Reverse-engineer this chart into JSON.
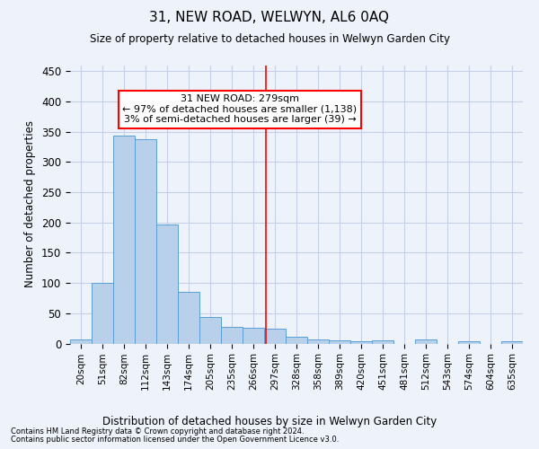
{
  "title": "31, NEW ROAD, WELWYN, AL6 0AQ",
  "subtitle": "Size of property relative to detached houses in Welwyn Garden City",
  "xlabel": "Distribution of detached houses by size in Welwyn Garden City",
  "ylabel": "Number of detached properties",
  "footnote1": "Contains HM Land Registry data © Crown copyright and database right 2024.",
  "footnote2": "Contains public sector information licensed under the Open Government Licence v3.0.",
  "bar_labels": [
    "20sqm",
    "51sqm",
    "82sqm",
    "112sqm",
    "143sqm",
    "174sqm",
    "205sqm",
    "235sqm",
    "266sqm",
    "297sqm",
    "328sqm",
    "358sqm",
    "389sqm",
    "420sqm",
    "451sqm",
    "481sqm",
    "512sqm",
    "543sqm",
    "574sqm",
    "604sqm",
    "635sqm"
  ],
  "bar_values": [
    6,
    100,
    344,
    338,
    196,
    86,
    44,
    27,
    26,
    24,
    11,
    6,
    5,
    4,
    5,
    0,
    6,
    0,
    3,
    0,
    3
  ],
  "bar_color": "#b8d0ea",
  "bar_edge_color": "#5a9fd4",
  "ylim": [
    0,
    460
  ],
  "yticks": [
    0,
    50,
    100,
    150,
    200,
    250,
    300,
    350,
    400,
    450
  ],
  "vline_x": 8.58,
  "vline_color": "red",
  "annotation_text": "31 NEW ROAD: 279sqm\n← 97% of detached houses are smaller (1,138)\n3% of semi-detached houses are larger (39) →",
  "bg_color": "#eef2fa",
  "grid_color": "#c5cfe8"
}
